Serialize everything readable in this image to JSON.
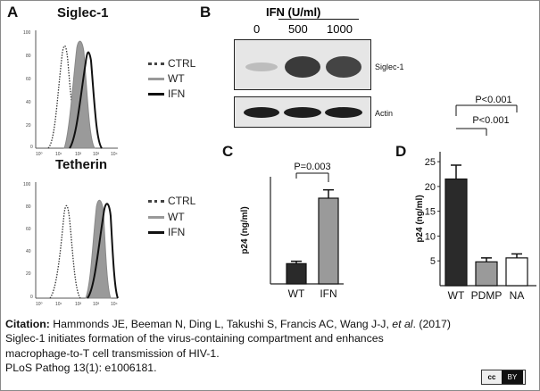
{
  "panels": {
    "A": {
      "letter": "A",
      "top_title": "Siglec-1",
      "bottom_title": "Tetherin",
      "legend": [
        "CTRL",
        "WT",
        "IFN"
      ],
      "y_ticks": [
        "100",
        "80",
        "60",
        "40",
        "20",
        "0"
      ],
      "x_ticks": [
        "10⁰",
        "10¹",
        "10²",
        "10³",
        "10⁴"
      ]
    },
    "B": {
      "letter": "B",
      "header": "IFN (U/ml)",
      "lanes": [
        "0",
        "500",
        "1000"
      ],
      "band_labels": [
        "Siglec-1",
        "Actin"
      ]
    },
    "C": {
      "letter": "C"
    },
    "D": {
      "letter": "D"
    }
  },
  "chart_data": [
    {
      "type": "bar",
      "panel": "C",
      "categories": [
        "WT",
        "IFN"
      ],
      "values": [
        8.5,
        36
      ],
      "errors": [
        1,
        3.5
      ],
      "ylabel": "p24 (ng/ml)",
      "ylim": [
        0,
        45
      ],
      "annotations": [
        {
          "text": "P=0.003",
          "between": [
            "WT",
            "IFN"
          ]
        }
      ],
      "colors": [
        "#2a2a2a",
        "#9a9a9a"
      ]
    },
    {
      "type": "bar",
      "panel": "D",
      "categories": [
        "WT",
        "PDMP",
        "NA"
      ],
      "values": [
        21.5,
        4.8,
        5.6
      ],
      "errors": [
        2.8,
        0.8,
        0.8
      ],
      "ylabel": "p24 (ng/ml)",
      "ylim": [
        0,
        27
      ],
      "y_ticks": [
        5,
        10,
        15,
        20,
        25
      ],
      "annotations": [
        {
          "text": "P<0.001",
          "between": [
            "WT",
            "NA"
          ]
        },
        {
          "text": "P<0.001",
          "between": [
            "WT",
            "PDMP"
          ]
        }
      ],
      "colors": [
        "#2a2a2a",
        "#9a9a9a",
        "#ffffff"
      ]
    }
  ],
  "citation": {
    "label": "Citation:",
    "authors": "Hammonds JE, Beeman N, Ding L, Takushi S, Francis AC, Wang J-J,",
    "etal": "et al",
    "year": ". (2017)",
    "title_line1": "Siglec-1 initiates formation of the virus-containing compartment and enhances",
    "title_line2": "macrophage-to-T cell transmission of HIV-1.",
    "journal": "PLoS Pathog 13(1): e1006181."
  },
  "license": {
    "badge_left": "cc",
    "badge_right": "BY"
  }
}
